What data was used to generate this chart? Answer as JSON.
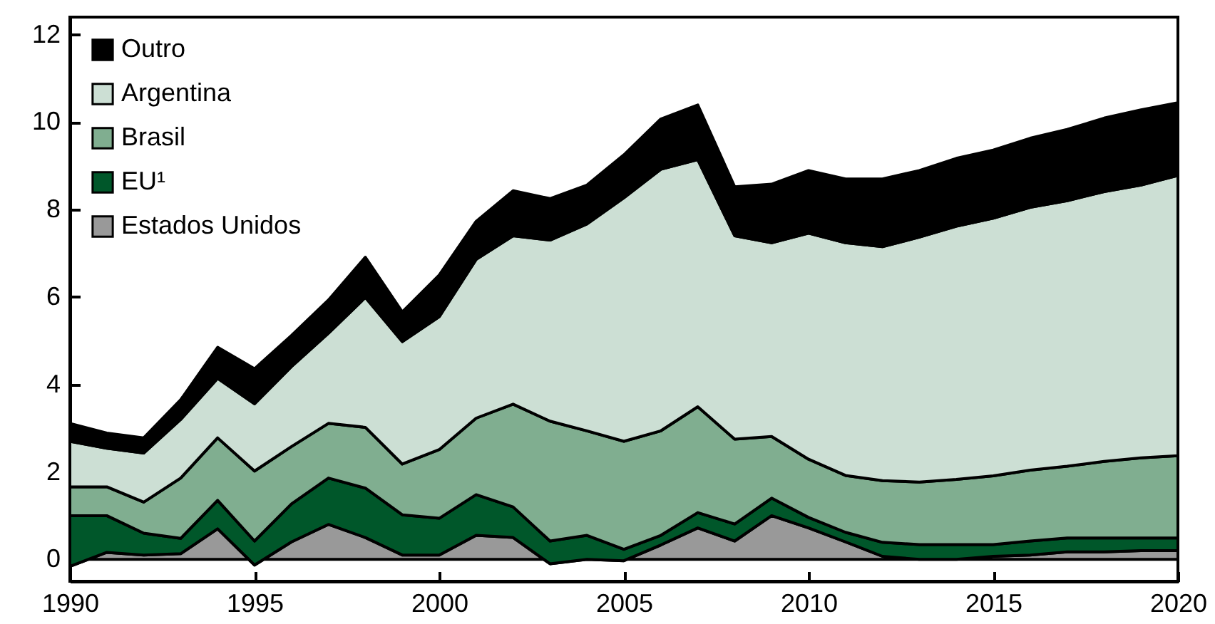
{
  "chart_data": {
    "type": "area",
    "stacked": true,
    "legend": "top left",
    "grid": false,
    "x": [
      1990,
      1991,
      1992,
      1993,
      1994,
      1995,
      1996,
      1997,
      1998,
      1999,
      2000,
      2001,
      2002,
      2003,
      2004,
      2005,
      2006,
      2007,
      2008,
      2009,
      2010,
      2011,
      2012,
      2013,
      2014,
      2015,
      2016,
      2017,
      2018,
      2019,
      2020
    ],
    "xlim": [
      1990,
      2020
    ],
    "xticks": [
      1990,
      1995,
      2000,
      2005,
      2010,
      2015,
      2020
    ],
    "ylim": [
      -0.5,
      12.4
    ],
    "yticks": [
      0,
      2,
      4,
      6,
      8,
      10,
      12
    ],
    "series": [
      {
        "name": "Estados Unidos",
        "color": "#999999",
        "values": [
          -0.16,
          0.16,
          0.1,
          0.13,
          0.7,
          -0.13,
          0.4,
          0.8,
          0.5,
          0.1,
          0.1,
          0.55,
          0.5,
          -0.1,
          0.0,
          -0.03,
          0.33,
          0.72,
          0.42,
          1.0,
          0.72,
          0.4,
          0.07,
          0.0,
          0.0,
          0.07,
          0.1,
          0.17,
          0.17,
          0.2,
          0.2
        ]
      },
      {
        "name": "EU¹",
        "color": "#00572a",
        "values": [
          1.16,
          0.84,
          0.5,
          0.35,
          0.65,
          0.55,
          0.87,
          1.06,
          1.13,
          0.92,
          0.84,
          0.93,
          0.7,
          0.52,
          0.55,
          0.26,
          0.22,
          0.35,
          0.39,
          0.4,
          0.24,
          0.22,
          0.32,
          0.34,
          0.34,
          0.27,
          0.32,
          0.32,
          0.32,
          0.29,
          0.29
        ]
      },
      {
        "name": "Brasil",
        "color": "#80ae90",
        "values": [
          0.66,
          0.66,
          0.71,
          1.38,
          1.43,
          1.6,
          1.31,
          1.25,
          1.39,
          1.16,
          1.57,
          1.75,
          2.35,
          2.74,
          2.39,
          2.47,
          2.39,
          2.42,
          1.94,
          1.41,
          1.33,
          1.3,
          1.41,
          1.43,
          1.49,
          1.57,
          1.62,
          1.64,
          1.75,
          1.83,
          1.88
        ]
      },
      {
        "name": "Argentina",
        "color": "#ccdfd4",
        "values": [
          1.04,
          0.88,
          1.12,
          1.34,
          1.36,
          1.54,
          1.83,
          2.06,
          2.97,
          2.8,
          3.04,
          3.63,
          3.85,
          4.14,
          4.73,
          5.57,
          5.98,
          5.65,
          4.65,
          4.43,
          5.17,
          5.32,
          5.35,
          5.6,
          5.79,
          5.89,
          6.01,
          6.07,
          6.17,
          6.24,
          6.41
        ]
      },
      {
        "name": "Outro",
        "color": "#000000",
        "values": [
          0.41,
          0.35,
          0.35,
          0.45,
          0.71,
          0.8,
          0.71,
          0.76,
          0.92,
          0.68,
          0.95,
          0.87,
          1.03,
          0.95,
          0.89,
          0.98,
          1.15,
          1.25,
          1.12,
          1.34,
          1.43,
          1.46,
          1.55,
          1.52,
          1.55,
          1.56,
          1.58,
          1.63,
          1.68,
          1.72,
          1.66
        ]
      }
    ]
  }
}
